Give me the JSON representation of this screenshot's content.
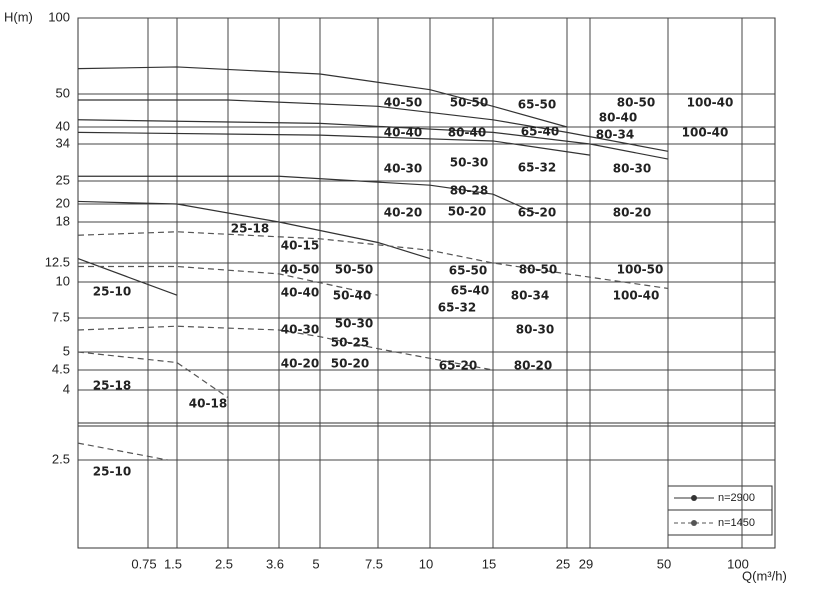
{
  "chart_data": {
    "type": "line",
    "y_label": "H(m)",
    "x_label": "Q(m³/h)",
    "xlim": [
      0.5,
      140
    ],
    "xticks": [
      0.75,
      1.5,
      2.5,
      3.6,
      5,
      7.5,
      10,
      15,
      25,
      29,
      50,
      100
    ],
    "ylim": [
      1.5,
      100
    ],
    "yticks": [
      2.5,
      4,
      4.5,
      5,
      7.5,
      10,
      12.5,
      18,
      20,
      25,
      34,
      40,
      50,
      100
    ],
    "x_scale": "log",
    "y_scale": "log",
    "grid": true,
    "legend": "lower right",
    "series": [
      {
        "name": "n=2900",
        "color": "#333333",
        "dashed": false,
        "curves": [
          {
            "x": [
              0.5,
              1.5,
              5,
              10,
              15,
              25
            ],
            "values": [
              63,
              64,
              60,
              52,
              46,
              40
            ]
          },
          {
            "x": [
              0.5,
              2.5,
              7.5,
              15,
              25,
              50
            ],
            "values": [
              48,
              48,
              46,
              42,
              38,
              32
            ]
          },
          {
            "x": [
              0.5,
              5,
              15,
              29,
              50
            ],
            "values": [
              42,
              41,
              38,
              34,
              30
            ]
          },
          {
            "x": [
              0.5,
              5,
              15,
              29
            ],
            "values": [
              38,
              37,
              35,
              31
            ]
          },
          {
            "x": [
              0.5,
              3.6,
              10,
              15,
              20
            ],
            "values": [
              26,
              26,
              24,
              22,
              19
            ]
          },
          {
            "x": [
              0.5,
              1.5,
              3.6,
              7.5,
              10
            ],
            "values": [
              20.5,
              20,
              18,
              15,
              13
            ]
          },
          {
            "x": [
              0.5,
              1.5
            ],
            "values": [
              13,
              9
            ]
          }
        ]
      },
      {
        "name": "n=1450",
        "color": "#555555",
        "dashed": true,
        "curves": [
          {
            "x": [
              0.5,
              1.5,
              5,
              10,
              15,
              25,
              50
            ],
            "values": [
              16,
              16.5,
              15.5,
              14,
              12.5,
              11,
              9.5
            ]
          },
          {
            "x": [
              0.5,
              1.5,
              3.6,
              7.5
            ],
            "values": [
              12,
              12,
              11,
              9
            ]
          },
          {
            "x": [
              0.5,
              1.5,
              3.6,
              5,
              7.5,
              15
            ],
            "values": [
              6.5,
              6.8,
              6.5,
              6,
              5.2,
              4.5
            ]
          },
          {
            "x": [
              0.5,
              1.5,
              2.5
            ],
            "values": [
              5,
              4.7,
              3.8
            ]
          },
          {
            "x": [
              0.5,
              1.2
            ],
            "values": [
              2.8,
              2.5
            ]
          }
        ]
      }
    ],
    "region_labels": [
      "40-50",
      "50-50",
      "65-50",
      "80-50",
      "100-40",
      "80-40",
      "40-40",
      "80-40",
      "65-40",
      "80-34",
      "100-40",
      "40-30",
      "50-30",
      "65-32",
      "80-30",
      "80-28",
      "40-20",
      "50-20",
      "65-20",
      "80-20",
      "25-18",
      "40-15",
      "40-50",
      "50-50",
      "65-50",
      "80-50",
      "100-50",
      "65-40",
      "80-34",
      "40-40",
      "50-40",
      "100-40",
      "25-10",
      "65-32",
      "40-30",
      "50-30",
      "50-25",
      "80-30",
      "40-20",
      "50-20",
      "65-20",
      "80-20",
      "25-18",
      "40-18",
      "25-10"
    ]
  }
}
